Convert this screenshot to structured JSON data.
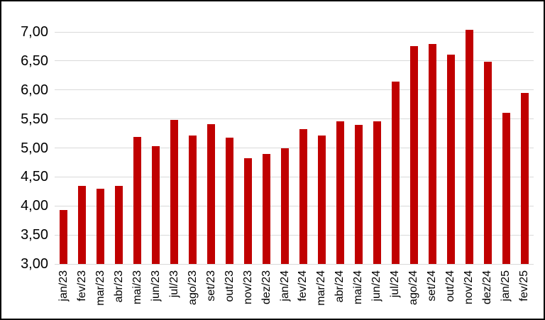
{
  "window": {
    "background": "#FFFFFF",
    "border_color": "#000000"
  },
  "chart_data": {
    "type": "bar",
    "title": "",
    "xlabel": "",
    "ylabel": "",
    "legend": false,
    "grid": true,
    "categories": [
      "jan/23",
      "fev/23",
      "mar/23",
      "abr/23",
      "mai/23",
      "jun/23",
      "jul/23",
      "ago/23",
      "set/23",
      "out/23",
      "nov/23",
      "dez/23",
      "jan/24",
      "fev/24",
      "mar/24",
      "abr/24",
      "mai/24",
      "jun/24",
      "jul/24",
      "ago/24",
      "set/24",
      "out/24",
      "nov/24",
      "dez/24",
      "jan/25",
      "fev/25"
    ],
    "values": [
      3.93,
      4.34,
      4.3,
      4.35,
      5.19,
      5.03,
      5.48,
      5.22,
      5.41,
      5.18,
      4.82,
      4.89,
      4.99,
      5.33,
      5.22,
      5.46,
      5.4,
      5.46,
      6.14,
      6.75,
      6.79,
      6.61,
      7.04,
      6.49,
      5.61,
      5.95
    ],
    "ylim": [
      3.0,
      7.0
    ],
    "ytick_step": 0.5,
    "yticks": [
      3.0,
      3.5,
      4.0,
      4.5,
      5.0,
      5.5,
      6.0,
      6.5,
      7.0
    ],
    "ytick_labels": [
      "3,00",
      "3,50",
      "4,00",
      "4,50",
      "5,00",
      "5,50",
      "6,00",
      "6,50",
      "7,00"
    ],
    "decimal_separator": ",",
    "x_labels_rotation_deg": -90,
    "bar_color": "#C00000",
    "gridline_color": "#D9D9D9",
    "text_color": "#000000"
  }
}
